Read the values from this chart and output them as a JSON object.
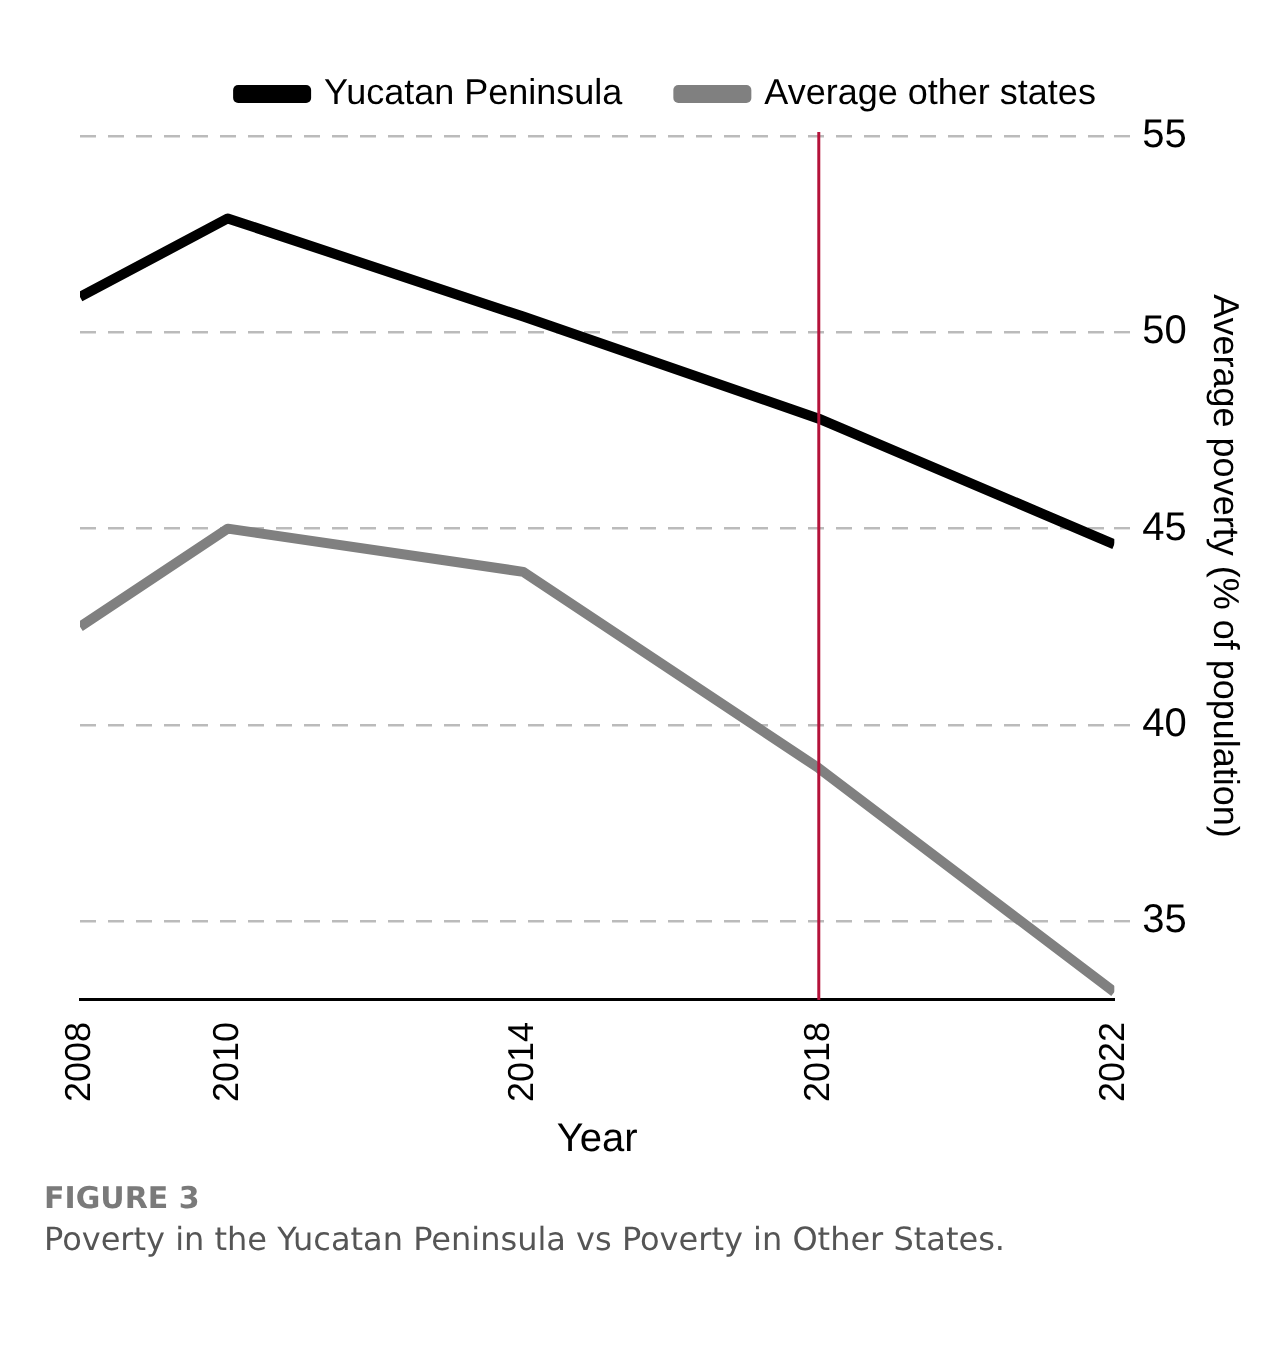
{
  "chart_data": {
    "type": "line",
    "xlabel": "Year",
    "ylabel": "Average poverty (% of population)",
    "x": [
      2008,
      2010,
      2014,
      2018,
      2022
    ],
    "series": [
      {
        "name": "Yucatan Peninsula",
        "color": "#000000",
        "values": [
          50.9,
          52.9,
          50.4,
          47.8,
          44.6
        ]
      },
      {
        "name": "Average other states",
        "color": "#808080",
        "values": [
          42.5,
          45.0,
          43.9,
          38.9,
          33.2
        ]
      }
    ],
    "xlim": [
      2008,
      2022
    ],
    "xticks": [
      2008,
      2010,
      2014,
      2018,
      2022
    ],
    "ylim": [
      33,
      55.1
    ],
    "yticks": [
      35,
      40,
      45,
      50,
      55
    ],
    "grid": "y",
    "legend": "top",
    "marker": "none",
    "line_style": "solid",
    "ref_lines": [
      {
        "axis": "x",
        "value": 2018,
        "color": "#b5123a"
      }
    ],
    "annotations": [
      "FIGURE 3",
      "Poverty in the Yucatan Peninsula vs Poverty in Other States."
    ]
  }
}
